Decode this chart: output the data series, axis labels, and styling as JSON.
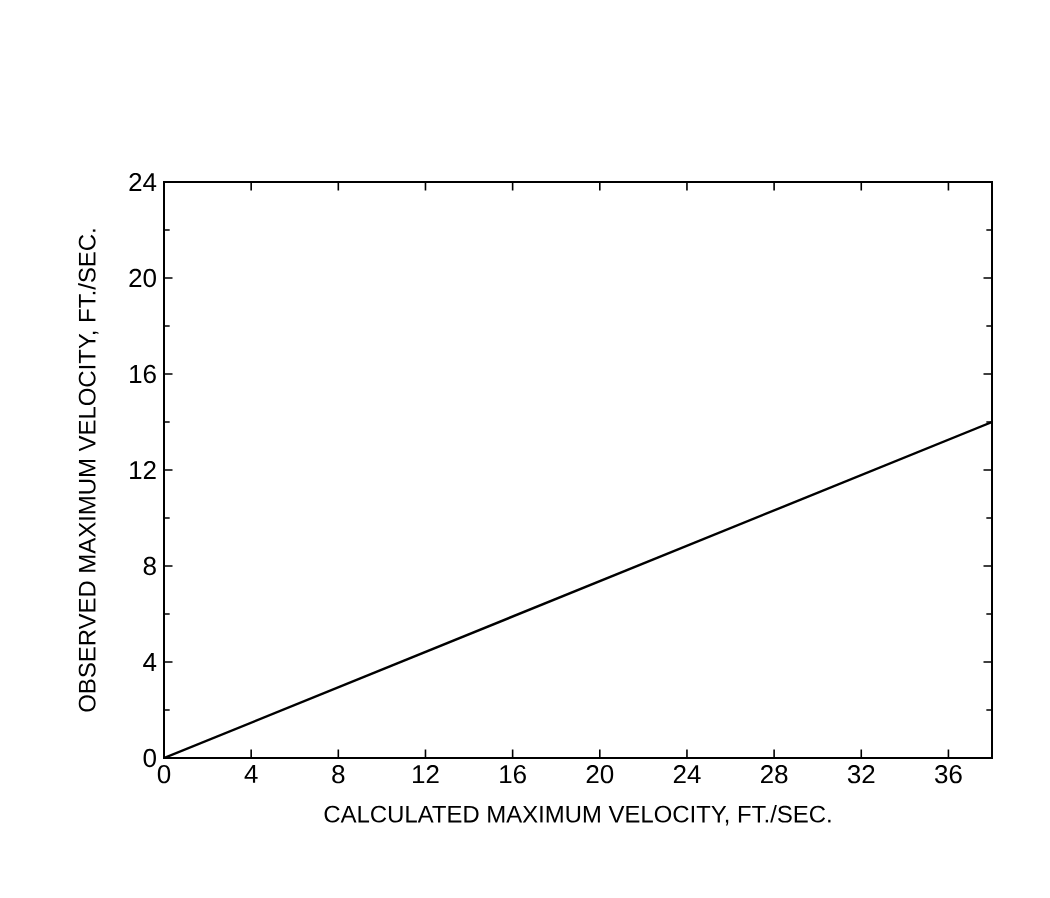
{
  "chart_data": {
    "type": "line",
    "xlabel": "CALCULATED MAXIMUM VELOCITY, FT./SEC.",
    "ylabel": "OBSERVED MAXIMUM VELOCITY, FT./SEC.",
    "x": [
      0,
      38
    ],
    "series": [
      {
        "color": "#000000",
        "values": [
          0,
          14
        ]
      }
    ],
    "xlim": [
      0,
      38
    ],
    "ylim": [
      0,
      24
    ],
    "xticks": [
      0,
      4,
      8,
      12,
      16,
      20,
      24,
      28,
      32,
      36
    ],
    "yticks": [
      0,
      4,
      8,
      12,
      16,
      20,
      24
    ],
    "grid": false,
    "marker": "none",
    "line_style": "solid"
  }
}
